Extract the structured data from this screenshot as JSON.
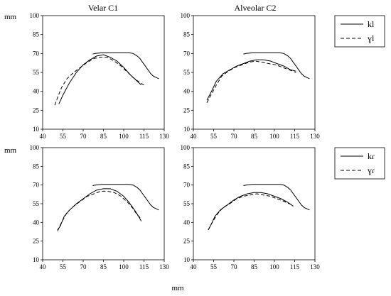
{
  "labels": {
    "title_velar": "Velar C1",
    "title_alveolar": "Alveolar C2",
    "unit_top": "mm",
    "unit_bottom": "mm",
    "unit_x": "mm"
  },
  "legends": [
    {
      "entries": [
        {
          "label": "kl",
          "dash": "solid"
        },
        {
          "label": "ɣl",
          "dash": "dashed"
        }
      ]
    },
    {
      "entries": [
        {
          "label": "kɾ",
          "dash": "solid"
        },
        {
          "label": "ɣɾ",
          "dash": "dashed"
        }
      ]
    }
  ],
  "chart_data": [
    {
      "type": "line",
      "title": "Velar C1",
      "ylabel": "mm",
      "xlim": [
        40,
        130
      ],
      "ylim": [
        10,
        100
      ],
      "xticks": [
        40,
        55,
        70,
        85,
        100,
        115,
        130
      ],
      "yticks": [
        10,
        25,
        40,
        55,
        70,
        85,
        100
      ],
      "series": [
        {
          "name": "kl",
          "dash": "solid",
          "points": [
            [
              52,
              30
            ],
            [
              55,
              37
            ],
            [
              60,
              47
            ],
            [
              65,
              55
            ],
            [
              70,
              61
            ],
            [
              75,
              65
            ],
            [
              80,
              68
            ],
            [
              85,
              69
            ],
            [
              90,
              67
            ],
            [
              95,
              64
            ],
            [
              100,
              59
            ],
            [
              105,
              53
            ],
            [
              110,
              48
            ],
            [
              113,
              45
            ]
          ]
        },
        {
          "name": "ɣl",
          "dash": "dashed",
          "points": [
            [
              49,
              29
            ],
            [
              51,
              35
            ],
            [
              54,
              43
            ],
            [
              58,
              50
            ],
            [
              63,
              55
            ],
            [
              68,
              59
            ],
            [
              73,
              63
            ],
            [
              78,
              66
            ],
            [
              83,
              67
            ],
            [
              88,
              67
            ],
            [
              93,
              64
            ],
            [
              98,
              60
            ],
            [
              103,
              55
            ],
            [
              108,
              50
            ],
            [
              112,
              47
            ],
            [
              115,
              45
            ]
          ]
        },
        {
          "name": "palate",
          "dash": "solid",
          "points": [
            [
              77,
              69.5
            ],
            [
              79,
              70
            ],
            [
              84,
              70.5
            ],
            [
              95,
              70.5
            ],
            [
              104,
              70.5
            ],
            [
              107,
              70
            ],
            [
              110,
              68
            ],
            [
              112,
              66
            ],
            [
              114,
              63
            ],
            [
              116,
              60
            ],
            [
              118,
              57
            ],
            [
              120,
              54
            ],
            [
              122,
              52
            ],
            [
              126,
              50
            ]
          ]
        }
      ]
    },
    {
      "type": "line",
      "title": "Alveolar C2",
      "xlim": [
        40,
        130
      ],
      "ylim": [
        10,
        100
      ],
      "xticks": [
        40,
        55,
        70,
        85,
        100,
        115,
        130
      ],
      "yticks": [
        10,
        25,
        40,
        55,
        70,
        85,
        100
      ],
      "series": [
        {
          "name": "kl",
          "dash": "solid",
          "points": [
            [
              50,
              33
            ],
            [
              53,
              39
            ],
            [
              57,
              48
            ],
            [
              62,
              54
            ],
            [
              67,
              57
            ],
            [
              72,
              60
            ],
            [
              77,
              62
            ],
            [
              82,
              64
            ],
            [
              87,
              65
            ],
            [
              92,
              65
            ],
            [
              97,
              64
            ],
            [
              102,
              62
            ],
            [
              107,
              60
            ],
            [
              112,
              57
            ],
            [
              116,
              56
            ]
          ]
        },
        {
          "name": "ɣl",
          "dash": "dashed",
          "points": [
            [
              50,
              31
            ],
            [
              53,
              37
            ],
            [
              57,
              45
            ],
            [
              61,
              52
            ],
            [
              66,
              56
            ],
            [
              71,
              59
            ],
            [
              76,
              61
            ],
            [
              81,
              63
            ],
            [
              86,
              64
            ],
            [
              91,
              63
            ],
            [
              96,
              62
            ],
            [
              101,
              61
            ],
            [
              106,
              59
            ],
            [
              111,
              57
            ],
            [
              116,
              55
            ]
          ]
        },
        {
          "name": "palate",
          "dash": "solid",
          "points": [
            [
              77,
              69.5
            ],
            [
              79,
              70
            ],
            [
              84,
              70.5
            ],
            [
              95,
              70.5
            ],
            [
              104,
              70.5
            ],
            [
              107,
              70
            ],
            [
              110,
              68
            ],
            [
              112,
              66
            ],
            [
              114,
              63
            ],
            [
              116,
              60
            ],
            [
              118,
              57
            ],
            [
              120,
              54
            ],
            [
              122,
              52
            ],
            [
              126,
              50
            ]
          ]
        }
      ]
    },
    {
      "type": "line",
      "ylabel": "mm",
      "xlabel": "",
      "xlim": [
        40,
        130
      ],
      "ylim": [
        10,
        100
      ],
      "xticks": [
        40,
        55,
        70,
        85,
        100,
        115,
        130
      ],
      "yticks": [
        10,
        25,
        40,
        55,
        70,
        85,
        100
      ],
      "series": [
        {
          "name": "kɾ",
          "dash": "solid",
          "points": [
            [
              51,
              34
            ],
            [
              53,
              37
            ],
            [
              56,
              45
            ],
            [
              60,
              50
            ],
            [
              65,
              55
            ],
            [
              70,
              59
            ],
            [
              75,
              63
            ],
            [
              80,
              66
            ],
            [
              85,
              67
            ],
            [
              90,
              67
            ],
            [
              95,
              65
            ],
            [
              100,
              61
            ],
            [
              104,
              56
            ],
            [
              108,
              50
            ],
            [
              111,
              45
            ],
            [
              113,
              41
            ]
          ]
        },
        {
          "name": "ɣɾ",
          "dash": "dashed",
          "points": [
            [
              51,
              33
            ],
            [
              54,
              40
            ],
            [
              58,
              48
            ],
            [
              63,
              53
            ],
            [
              68,
              57
            ],
            [
              73,
              61
            ],
            [
              78,
              63
            ],
            [
              83,
              65
            ],
            [
              88,
              65
            ],
            [
              93,
              64
            ],
            [
              98,
              61
            ],
            [
              103,
              56
            ],
            [
              107,
              51
            ],
            [
              110,
              46
            ],
            [
              113,
              43
            ]
          ]
        },
        {
          "name": "palate",
          "dash": "solid",
          "points": [
            [
              77,
              69.5
            ],
            [
              79,
              70
            ],
            [
              84,
              70.5
            ],
            [
              95,
              70.5
            ],
            [
              104,
              70.5
            ],
            [
              107,
              70
            ],
            [
              110,
              68
            ],
            [
              112,
              66
            ],
            [
              114,
              63
            ],
            [
              116,
              60
            ],
            [
              118,
              57
            ],
            [
              120,
              54
            ],
            [
              122,
              52
            ],
            [
              126,
              50
            ]
          ]
        }
      ]
    },
    {
      "type": "line",
      "xlim": [
        40,
        130
      ],
      "ylim": [
        10,
        100
      ],
      "xticks": [
        40,
        55,
        70,
        85,
        100,
        115,
        130
      ],
      "yticks": [
        10,
        25,
        40,
        55,
        70,
        85,
        100
      ],
      "series": [
        {
          "name": "kɾ",
          "dash": "solid",
          "points": [
            [
              51,
              34
            ],
            [
              53,
              38
            ],
            [
              56,
              45
            ],
            [
              60,
              50
            ],
            [
              65,
              54
            ],
            [
              70,
              58
            ],
            [
              75,
              61
            ],
            [
              80,
              63
            ],
            [
              85,
              64
            ],
            [
              90,
              64
            ],
            [
              95,
              63
            ],
            [
              100,
              61
            ],
            [
              105,
              59
            ],
            [
              110,
              56
            ],
            [
              114,
              53
            ]
          ]
        },
        {
          "name": "ɣɾ",
          "dash": "dashed",
          "points": [
            [
              51,
              34
            ],
            [
              54,
              40
            ],
            [
              58,
              47
            ],
            [
              62,
              52
            ],
            [
              67,
              55
            ],
            [
              72,
              59
            ],
            [
              77,
              61
            ],
            [
              82,
              62
            ],
            [
              87,
              63
            ],
            [
              92,
              62
            ],
            [
              97,
              61
            ],
            [
              102,
              59
            ],
            [
              107,
              57
            ],
            [
              111,
              55
            ],
            [
              114,
              54
            ]
          ]
        },
        {
          "name": "palate",
          "dash": "solid",
          "points": [
            [
              77,
              69.5
            ],
            [
              79,
              70
            ],
            [
              84,
              70.5
            ],
            [
              95,
              70.5
            ],
            [
              104,
              70.5
            ],
            [
              107,
              70
            ],
            [
              110,
              68
            ],
            [
              112,
              66
            ],
            [
              114,
              63
            ],
            [
              116,
              60
            ],
            [
              118,
              57
            ],
            [
              120,
              54
            ],
            [
              122,
              52
            ],
            [
              126,
              50
            ]
          ]
        }
      ]
    }
  ]
}
